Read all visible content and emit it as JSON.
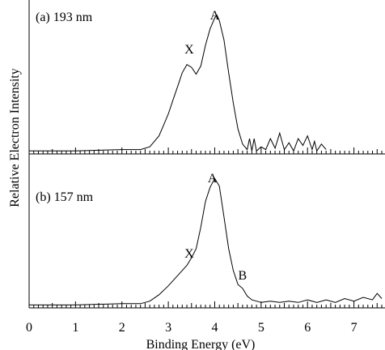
{
  "chart_data": [
    {
      "type": "line",
      "title": "(a) 193 nm",
      "xlabel": "Binding Energy (eV)",
      "ylabel": "Relative Electron Intensity",
      "xlim": [
        0,
        7.6
      ],
      "ylim": [
        0,
        1.04
      ],
      "xticks": [
        "0",
        "1",
        "2",
        "3",
        "4",
        "5",
        "6",
        "7"
      ],
      "grid": false,
      "annotations": [
        {
          "text": "X",
          "x": 3.45,
          "y": 0.72
        },
        {
          "text": "A",
          "x": 4.0,
          "y": 0.97
        }
      ],
      "series": [
        {
          "x": [
            0.0,
            1.0,
            2.0,
            2.4,
            2.6,
            2.8,
            2.9,
            3.0,
            3.1,
            3.2,
            3.3,
            3.4,
            3.5,
            3.6,
            3.7,
            3.8,
            3.9,
            4.0,
            4.05,
            4.1,
            4.2,
            4.3,
            4.4,
            4.5,
            4.6,
            4.7,
            4.75,
            4.8,
            4.85,
            4.9,
            5.0,
            5.1,
            5.2,
            5.3,
            5.4,
            5.5,
            5.6,
            5.7,
            5.8,
            5.9,
            6.0,
            6.1,
            6.15,
            6.2,
            6.3,
            6.4
          ],
          "y": [
            0.01,
            0.01,
            0.02,
            0.02,
            0.04,
            0.12,
            0.2,
            0.28,
            0.38,
            0.48,
            0.58,
            0.64,
            0.62,
            0.57,
            0.63,
            0.78,
            0.9,
            0.98,
            1.0,
            0.96,
            0.82,
            0.58,
            0.36,
            0.17,
            0.06,
            0.02,
            0.1,
            0.01,
            0.1,
            0.01,
            0.04,
            0.02,
            0.1,
            0.03,
            0.14,
            0.02,
            0.07,
            0.01,
            0.1,
            0.05,
            0.12,
            0.02,
            0.08,
            0.01,
            0.06,
            0.02
          ]
        }
      ]
    },
    {
      "type": "line",
      "title": "(b) 157 nm",
      "xlabel": "Binding Energy (eV)",
      "ylabel": "Relative Electron Intensity",
      "xlim": [
        0,
        7.6
      ],
      "ylim": [
        0,
        1.04
      ],
      "xticks": [
        "0",
        "1",
        "2",
        "3",
        "4",
        "5",
        "6",
        "7"
      ],
      "grid": false,
      "annotations": [
        {
          "text": "X",
          "x": 3.45,
          "y": 0.38
        },
        {
          "text": "A",
          "x": 3.95,
          "y": 0.97
        },
        {
          "text": "B",
          "x": 4.6,
          "y": 0.21
        }
      ],
      "series": [
        {
          "x": [
            0.0,
            1.0,
            2.0,
            2.4,
            2.6,
            2.8,
            3.0,
            3.2,
            3.4,
            3.5,
            3.6,
            3.7,
            3.8,
            3.9,
            4.0,
            4.1,
            4.2,
            4.3,
            4.4,
            4.5,
            4.6,
            4.7,
            4.8,
            5.0,
            5.2,
            5.4,
            5.6,
            5.8,
            6.0,
            6.2,
            6.4,
            6.6,
            6.8,
            7.0,
            7.2,
            7.4,
            7.5,
            7.6
          ],
          "y": [
            0.01,
            0.01,
            0.02,
            0.02,
            0.04,
            0.09,
            0.16,
            0.24,
            0.32,
            0.38,
            0.45,
            0.62,
            0.82,
            0.93,
            1.0,
            0.94,
            0.7,
            0.45,
            0.28,
            0.17,
            0.14,
            0.08,
            0.05,
            0.03,
            0.04,
            0.03,
            0.04,
            0.03,
            0.05,
            0.03,
            0.05,
            0.03,
            0.06,
            0.04,
            0.07,
            0.05,
            0.1,
            0.06
          ]
        }
      ]
    }
  ]
}
